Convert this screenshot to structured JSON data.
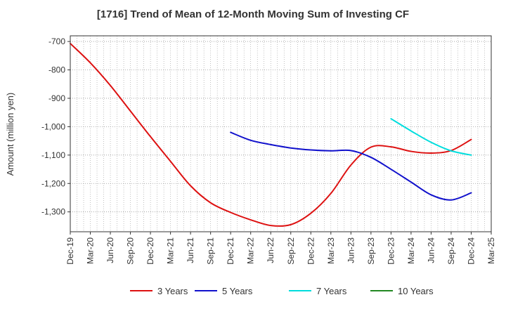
{
  "chart_data": {
    "type": "line",
    "title": "[1716]  Trend of Mean of 12-Month Moving Sum of Investing CF",
    "xlabel": "",
    "ylabel": "Amount (million yen)",
    "ylim": [
      -1370,
      -680
    ],
    "yticks": [
      -700,
      -800,
      -900,
      -1000,
      -1100,
      -1200,
      -1300
    ],
    "ytick_labels": [
      "-700",
      "-800",
      "-900",
      "-1,000",
      "-1,100",
      "-1,200",
      "-1,300"
    ],
    "xticks": [
      "Dec-19",
      "Mar-20",
      "Jun-20",
      "Sep-20",
      "Dec-20",
      "Mar-21",
      "Jun-21",
      "Sep-21",
      "Dec-21",
      "Mar-22",
      "Jun-22",
      "Sep-22",
      "Dec-22",
      "Mar-23",
      "Jun-23",
      "Sep-23",
      "Dec-23",
      "Mar-24",
      "Jun-24",
      "Sep-24",
      "Dec-24",
      "Mar-25"
    ],
    "grid": true,
    "legend_position": "bottom",
    "series": [
      {
        "name": "3 Years",
        "color": "#dd1111",
        "points": [
          [
            "Dec-19",
            -707
          ],
          [
            "Mar-20",
            -775
          ],
          [
            "Jun-20",
            -855
          ],
          [
            "Sep-20",
            -945
          ],
          [
            "Dec-20",
            -1035
          ],
          [
            "Mar-21",
            -1122
          ],
          [
            "Jun-21",
            -1208
          ],
          [
            "Sep-21",
            -1268
          ],
          [
            "Dec-21",
            -1302
          ],
          [
            "Mar-22",
            -1328
          ],
          [
            "Jun-22",
            -1348
          ],
          [
            "Sep-22",
            -1345
          ],
          [
            "Dec-22",
            -1305
          ],
          [
            "Mar-23",
            -1235
          ],
          [
            "Jun-23",
            -1135
          ],
          [
            "Sep-23",
            -1072
          ],
          [
            "Dec-23",
            -1071
          ],
          [
            "Mar-24",
            -1087
          ],
          [
            "Jun-24",
            -1093
          ],
          [
            "Sep-24",
            -1084
          ],
          [
            "Dec-24",
            -1045
          ]
        ]
      },
      {
        "name": "5 Years",
        "color": "#1111cc",
        "points": [
          [
            "Dec-21",
            -1020
          ],
          [
            "Mar-22",
            -1048
          ],
          [
            "Jun-22",
            -1063
          ],
          [
            "Sep-22",
            -1075
          ],
          [
            "Dec-22",
            -1082
          ],
          [
            "Mar-23",
            -1085
          ],
          [
            "Jun-23",
            -1084
          ],
          [
            "Sep-23",
            -1108
          ],
          [
            "Dec-23",
            -1150
          ],
          [
            "Mar-24",
            -1195
          ],
          [
            "Jun-24",
            -1240
          ],
          [
            "Sep-24",
            -1258
          ],
          [
            "Dec-24",
            -1233
          ]
        ]
      },
      {
        "name": "7 Years",
        "color": "#00dddd",
        "points": [
          [
            "Dec-23",
            -972
          ],
          [
            "Mar-24",
            -1015
          ],
          [
            "Jun-24",
            -1055
          ],
          [
            "Sep-24",
            -1085
          ],
          [
            "Dec-24",
            -1100
          ]
        ]
      },
      {
        "name": "10 Years",
        "color": "#228822",
        "points": []
      }
    ]
  }
}
